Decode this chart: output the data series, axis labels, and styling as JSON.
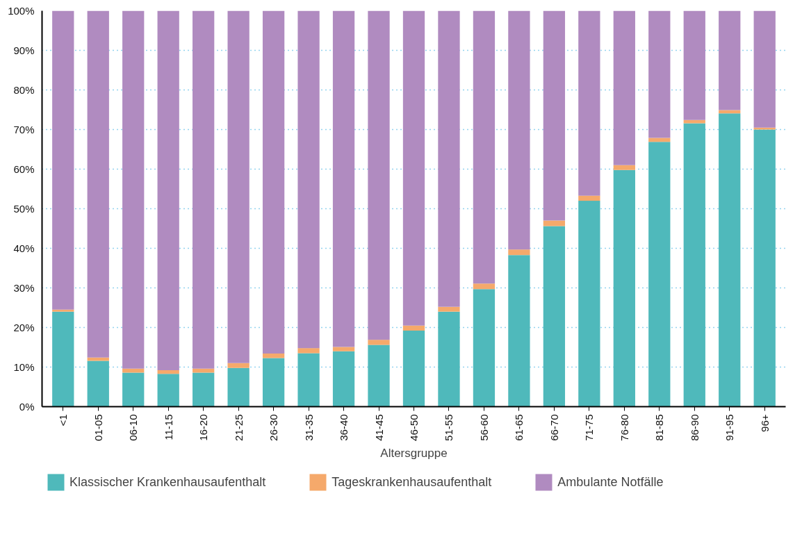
{
  "chart_data": {
    "type": "bar",
    "stacked": true,
    "xlabel": "Altersgruppe",
    "categories": [
      "<1",
      "01-05",
      "06-10",
      "11-15",
      "16-20",
      "21-25",
      "26-30",
      "31-35",
      "36-40",
      "41-45",
      "46-50",
      "51-55",
      "56-60",
      "61-65",
      "66-70",
      "71-75",
      "76-80",
      "81-85",
      "86-90",
      "91-95",
      "96+"
    ],
    "series": [
      {
        "name": "Klassischer Krankenhausaufenthalt",
        "color": "#4fb9bb",
        "values": [
          24.0,
          11.6,
          8.6,
          8.3,
          8.6,
          9.8,
          12.3,
          13.5,
          14.0,
          15.6,
          19.2,
          24.0,
          29.7,
          38.3,
          45.6,
          52.0,
          59.8,
          66.9,
          71.6,
          74.1,
          70.0
        ]
      },
      {
        "name": "Tageskrankenhausaufenthalt",
        "color": "#f5a96b",
        "values": [
          0.5,
          0.8,
          1.0,
          0.9,
          1.0,
          1.2,
          1.1,
          1.3,
          1.1,
          1.3,
          1.3,
          1.2,
          1.4,
          1.4,
          1.4,
          1.3,
          1.2,
          1.0,
          0.8,
          0.8,
          0.5
        ]
      },
      {
        "name": "Ambulante Notfälle",
        "color": "#b08bc0",
        "values": [
          75.5,
          87.6,
          90.4,
          90.8,
          90.4,
          89.0,
          86.6,
          85.2,
          84.9,
          83.1,
          79.5,
          74.8,
          68.9,
          60.3,
          53.0,
          46.7,
          39.0,
          32.1,
          27.6,
          25.1,
          29.5
        ]
      }
    ],
    "ylim": [
      0,
      100
    ],
    "yticks": [
      {
        "value": 0,
        "label": "0%"
      },
      {
        "value": 10,
        "label": "10%"
      },
      {
        "value": 20,
        "label": "20%"
      },
      {
        "value": 30,
        "label": "30%"
      },
      {
        "value": 40,
        "label": "40%"
      },
      {
        "value": 50,
        "label": "50%"
      },
      {
        "value": 60,
        "label": "60%"
      },
      {
        "value": 70,
        "label": "70%"
      },
      {
        "value": 80,
        "label": "80%"
      },
      {
        "value": 90,
        "label": "90%"
      },
      {
        "value": 100,
        "label": "100%"
      }
    ],
    "grid": "y",
    "legend": "bottom"
  }
}
